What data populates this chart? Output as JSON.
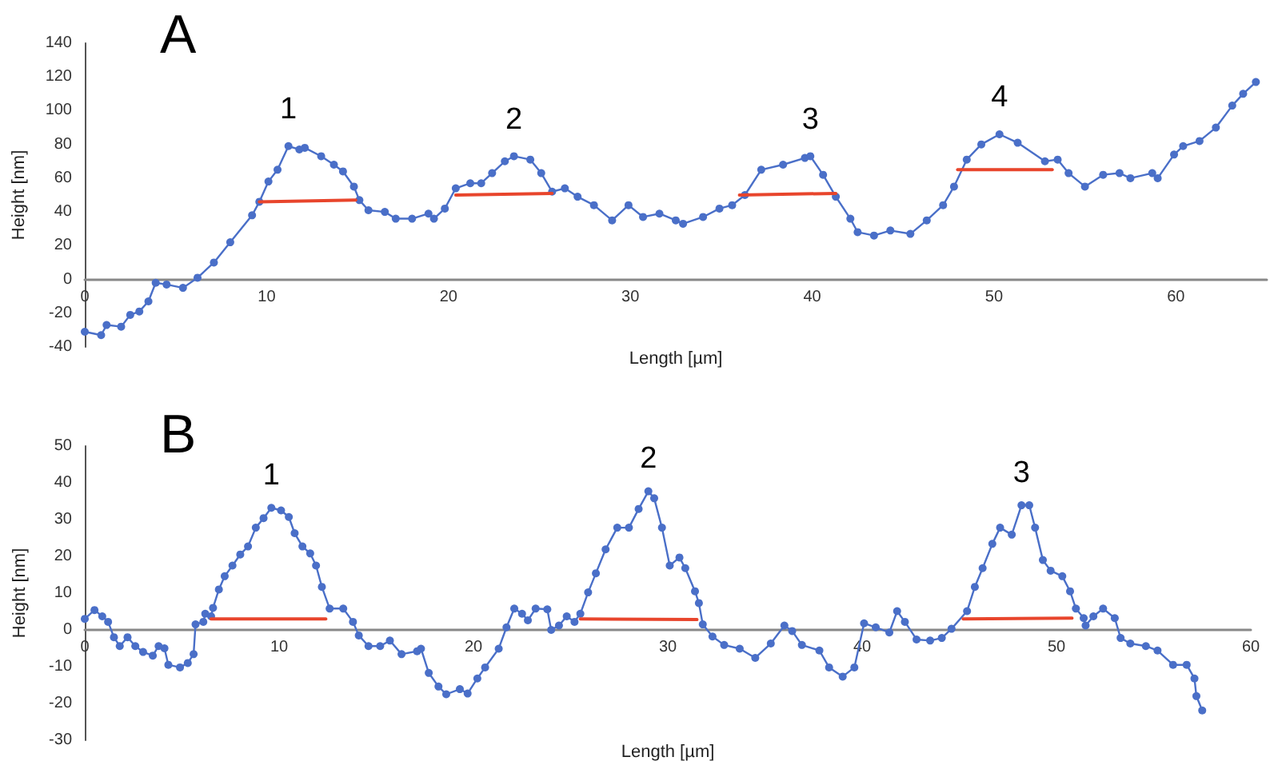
{
  "chart_data": [
    {
      "type": "line",
      "title": "A",
      "xlabel": "Length [µm]",
      "ylabel": "Height [nm]",
      "xlim": [
        0,
        65
      ],
      "xticks": [
        0,
        10,
        20,
        30,
        40,
        50,
        60
      ],
      "ylim": [
        -40,
        140
      ],
      "yticks": [
        -40,
        -20,
        0,
        20,
        40,
        60,
        80,
        100,
        120,
        140
      ],
      "grid": false,
      "marker": "circle",
      "series": [
        {
          "color": "#4a6fc8",
          "x": [
            0,
            0.9,
            1.2,
            2,
            2.5,
            3,
            3.5,
            3.9,
            4.5,
            5.4,
            6.2,
            7.1,
            8.0,
            9.2,
            9.6,
            10.1,
            10.6,
            11.2,
            11.8,
            12.1,
            13.0,
            13.7,
            14.2,
            14.8,
            15.1,
            15.6,
            16.5,
            17.1,
            18.0,
            18.9,
            19.2,
            19.8,
            20.4,
            21.2,
            21.8,
            22.4,
            23.1,
            23.6,
            24.5,
            25.1,
            25.7,
            26.4,
            27.1,
            28.0,
            29.0,
            29.9,
            30.7,
            31.6,
            32.5,
            32.9,
            34.0,
            34.9,
            35.6,
            36.3,
            37.2,
            38.4,
            39.6,
            39.9,
            40.6,
            41.3,
            42.1,
            42.5,
            43.4,
            44.3,
            45.4,
            46.3,
            47.2,
            47.8,
            48.5,
            49.3,
            50.3,
            51.3,
            52.8,
            53.5,
            54.1,
            55.0,
            56.0,
            56.9,
            57.5,
            58.7,
            59.0,
            59.9,
            60.4,
            61.3,
            62.2,
            63.1,
            63.7,
            64.4
          ],
          "values": [
            -31,
            -33,
            -27,
            -28,
            -21,
            -19,
            -13,
            -2,
            -3,
            -5,
            1,
            10,
            22,
            38,
            46,
            58,
            65,
            79,
            77,
            78,
            73,
            68,
            64,
            55,
            47,
            41,
            40,
            36,
            36,
            39,
            36,
            42,
            54,
            57,
            57,
            63,
            70,
            73,
            71,
            63,
            52,
            54,
            49,
            44,
            35,
            44,
            37,
            39,
            35,
            33,
            37,
            42,
            44,
            50,
            65,
            68,
            72,
            73,
            62,
            49,
            36,
            28,
            26,
            29,
            27,
            35,
            44,
            55,
            71,
            80,
            86,
            81,
            70,
            71,
            63,
            55,
            62,
            63,
            60,
            63,
            60,
            74,
            79,
            82,
            90,
            103,
            110,
            117
          ]
        },
        {
          "color": "#e8452c",
          "marker": "none",
          "x": [
            9.6,
            14.9
          ],
          "values": [
            46,
            47
          ]
        },
        {
          "color": "#e8452c",
          "marker": "none",
          "x": [
            20.4,
            25.7
          ],
          "values": [
            50,
            51
          ]
        },
        {
          "color": "#e8452c",
          "marker": "none",
          "x": [
            36.0,
            41.3
          ],
          "values": [
            50,
            51
          ]
        },
        {
          "color": "#e8452c",
          "marker": "none",
          "x": [
            48.0,
            53.2
          ],
          "values": [
            65,
            65
          ]
        }
      ],
      "annotations": [
        "1",
        "2",
        "3",
        "4"
      ]
    },
    {
      "type": "line",
      "title": "B",
      "xlabel": "Length [µm]",
      "ylabel": "Height [nm]",
      "xlim": [
        0,
        60
      ],
      "xticks": [
        0,
        10,
        20,
        30,
        40,
        50,
        60
      ],
      "ylim": [
        -30,
        50
      ],
      "yticks": [
        -30,
        -20,
        -10,
        0,
        10,
        20,
        30,
        40,
        50
      ],
      "grid": false,
      "marker": "circle",
      "series": [
        {
          "color": "#4a6fc8",
          "x": [
            0,
            0.5,
            0.9,
            1.2,
            1.5,
            1.8,
            2.2,
            2.6,
            3.0,
            3.5,
            3.8,
            4.1,
            4.3,
            4.9,
            5.3,
            5.6,
            5.7,
            6.1,
            6.2,
            6.5,
            6.6,
            6.9,
            7.2,
            7.6,
            8.0,
            8.4,
            8.8,
            9.2,
            9.6,
            10.1,
            10.5,
            10.8,
            11.2,
            11.6,
            11.9,
            12.2,
            12.6,
            13.3,
            13.8,
            14.1,
            14.6,
            15.2,
            15.7,
            16.3,
            17.1,
            17.3,
            17.7,
            18.2,
            18.6,
            19.3,
            19.7,
            20.2,
            20.6,
            21.3,
            21.7,
            22.1,
            22.5,
            22.8,
            23.2,
            23.8,
            24.0,
            24.4,
            24.8,
            25.2,
            25.5,
            25.9,
            26.3,
            26.8,
            27.4,
            28.0,
            28.5,
            29.0,
            29.3,
            29.7,
            30.1,
            30.6,
            30.9,
            31.4,
            31.6,
            31.8,
            32.3,
            32.9,
            33.7,
            34.5,
            35.3,
            36.0,
            36.4,
            36.9,
            37.8,
            38.3,
            39.0,
            39.6,
            40.1,
            40.7,
            41.4,
            41.8,
            42.2,
            42.8,
            43.5,
            44.1,
            44.6,
            45.4,
            45.8,
            46.2,
            46.7,
            47.1,
            47.7,
            48.2,
            48.6,
            48.9,
            49.3,
            49.7,
            50.3,
            50.7,
            51.0,
            51.4,
            51.5,
            51.9,
            52.4,
            53.0,
            53.3,
            53.8,
            54.6,
            55.2,
            56.0,
            56.7,
            57.1,
            57.2,
            57.5
          ],
          "values": [
            3,
            5.4,
            3.7,
            2.2,
            -2,
            -4.4,
            -2,
            -4.4,
            -6,
            -7,
            -4.4,
            -5,
            -9.5,
            -10.2,
            -9,
            -6.6,
            1.5,
            2.2,
            4.4,
            3.7,
            6,
            11,
            14.6,
            17.5,
            20.5,
            22.7,
            27.8,
            30.4,
            33.2,
            32.5,
            30.7,
            26.3,
            22.7,
            20.8,
            17.5,
            11.7,
            5.8,
            5.8,
            2.2,
            -1.5,
            -4.4,
            -4.4,
            -2.9,
            -6.6,
            -5.8,
            -5.1,
            -11.7,
            -15.4,
            -17.5,
            -16.1,
            -17.3,
            -13.2,
            -10.2,
            -5.1,
            0.7,
            5.8,
            4.4,
            2.6,
            5.8,
            5.6,
            0,
            1.2,
            3.7,
            2.2,
            4.4,
            10.2,
            15.4,
            21.9,
            27.8,
            27.8,
            32.9,
            37.7,
            35.8,
            27.8,
            17.5,
            19.7,
            16.8,
            10.5,
            7.3,
            1.5,
            -1.8,
            -4.1,
            -5.1,
            -7.6,
            -3.7,
            1.2,
            -0.3,
            -4.1,
            -5.6,
            -10.2,
            -12.7,
            -10.2,
            1.8,
            0.7,
            -0.7,
            5.1,
            2.2,
            -2.6,
            -2.9,
            -2.2,
            0.3,
            5.1,
            11.7,
            16.8,
            23.4,
            27.8,
            25.9,
            33.9,
            33.9,
            27.8,
            19,
            16.1,
            14.6,
            10.5,
            5.8,
            3.2,
            1.2,
            3.7,
            5.8,
            3.2,
            -2.2,
            -3.7,
            -4.4,
            -5.6,
            -9.5,
            -9.5,
            -13.2,
            -18,
            -21.9
          ]
        },
        {
          "color": "#e8452c",
          "marker": "none",
          "x": [
            6.5,
            12.4
          ],
          "values": [
            3,
            3
          ]
        },
        {
          "color": "#e8452c",
          "marker": "none",
          "x": [
            25.5,
            31.5
          ],
          "values": [
            3,
            2.8
          ]
        },
        {
          "color": "#e8452c",
          "marker": "none",
          "x": [
            45.2,
            50.8
          ],
          "values": [
            3,
            3.2
          ]
        }
      ],
      "annotations": [
        "1",
        "2",
        "3"
      ]
    }
  ]
}
